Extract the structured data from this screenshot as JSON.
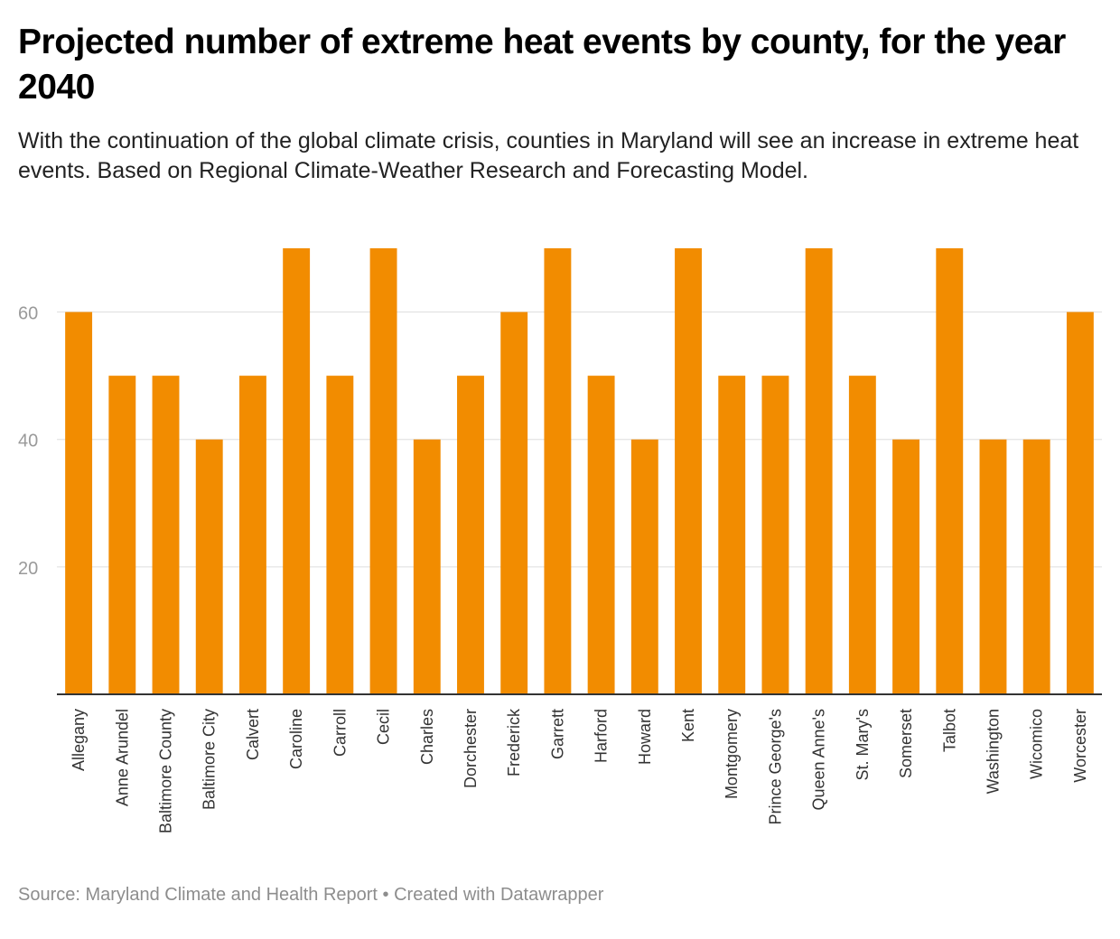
{
  "header": {
    "title": "Projected number of extreme heat events by county, for the year 2040",
    "subtitle": "With the continuation of the global climate crisis, counties in Maryland will see an increase in extreme heat events. Based on Regional Climate-Weather Research and Forecasting Model."
  },
  "footer": {
    "source": "Source: Maryland Climate and Health Report",
    "separator": "•",
    "credit": "Created with Datawrapper"
  },
  "colors": {
    "bar": "#f28c00",
    "grid": "#dddddd",
    "axis": "#333333",
    "tick_text": "#9a9a9a",
    "label_text": "#333333"
  },
  "chart_data": {
    "type": "bar",
    "categories": [
      "Allegany",
      "Anne Arundel",
      "Baltimore County",
      "Baltimore City",
      "Calvert",
      "Caroline",
      "Carroll",
      "Cecil",
      "Charles",
      "Dorchester",
      "Frederick",
      "Garrett",
      "Harford",
      "Howard",
      "Kent",
      "Montgomery",
      "Prince George's",
      "Queen Anne's",
      "St. Mary's",
      "Somerset",
      "Talbot",
      "Washington",
      "Wicomico",
      "Worcester"
    ],
    "values": [
      60,
      50,
      50,
      40,
      50,
      70,
      50,
      70,
      40,
      50,
      60,
      70,
      50,
      40,
      70,
      50,
      50,
      70,
      50,
      40,
      70,
      40,
      40,
      60
    ],
    "yticks": [
      20,
      40,
      60
    ],
    "ylim": [
      0,
      70
    ],
    "grid": true,
    "category_label_rotation": "vertical"
  }
}
